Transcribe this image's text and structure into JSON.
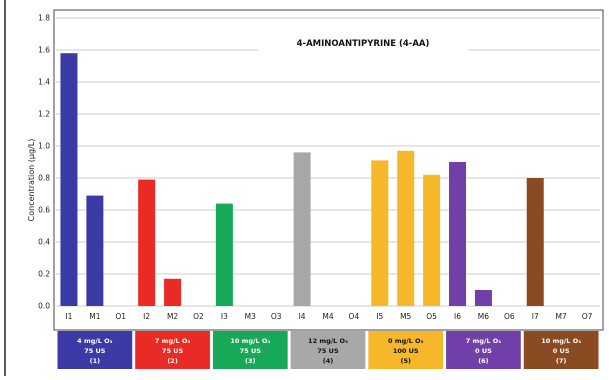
{
  "chart_data": {
    "type": "bar",
    "title": "4-AMINOANTIPYRINE (4-AA)",
    "ylabel": "Concentration (µg/L)",
    "ylim": [
      0,
      1.8
    ],
    "yticks": [
      "0.0",
      "0.2",
      "0.4",
      "0.6",
      "0.8",
      "1.0",
      "1.2",
      "1.4",
      "1.6",
      "1.8"
    ],
    "grid": true,
    "categories": [
      "I1",
      "M1",
      "O1",
      "I2",
      "M2",
      "O2",
      "I3",
      "M3",
      "O3",
      "I4",
      "M4",
      "O4",
      "I5",
      "M5",
      "O5",
      "I6",
      "M6",
      "O6",
      "I7",
      "M7",
      "O7"
    ],
    "values": [
      1.58,
      0.69,
      0,
      0.79,
      0.17,
      0,
      0.64,
      0,
      0,
      0.96,
      0,
      0,
      0.91,
      0.97,
      0.82,
      0.9,
      0.1,
      0,
      0.8,
      0,
      0
    ],
    "groups": [
      {
        "lines": [
          "4 mg/L O₃",
          "75 US",
          "(1)"
        ],
        "color": "#3b3ba6",
        "text_dark": false
      },
      {
        "lines": [
          "7 mg/L O₃",
          "75 US",
          "(2)"
        ],
        "color": "#ea2a24",
        "text_dark": false
      },
      {
        "lines": [
          "10 mg/L O₃",
          "75 US",
          "(3)"
        ],
        "color": "#17a957",
        "text_dark": false
      },
      {
        "lines": [
          "12 mg/L O₃",
          "75 US",
          "(4)"
        ],
        "color": "#a8a8a8",
        "text_dark": true
      },
      {
        "lines": [
          "0 mg/L O₃",
          "100 US",
          "(5)"
        ],
        "color": "#f7b72a",
        "text_dark": true
      },
      {
        "lines": [
          "7 mg/L O₃",
          "0 US",
          "(6)"
        ],
        "color": "#7040a8",
        "text_dark": false
      },
      {
        "lines": [
          "10 mg/L O₃",
          "0 US",
          "(7)"
        ],
        "color": "#8a4a22",
        "text_dark": false
      }
    ]
  }
}
